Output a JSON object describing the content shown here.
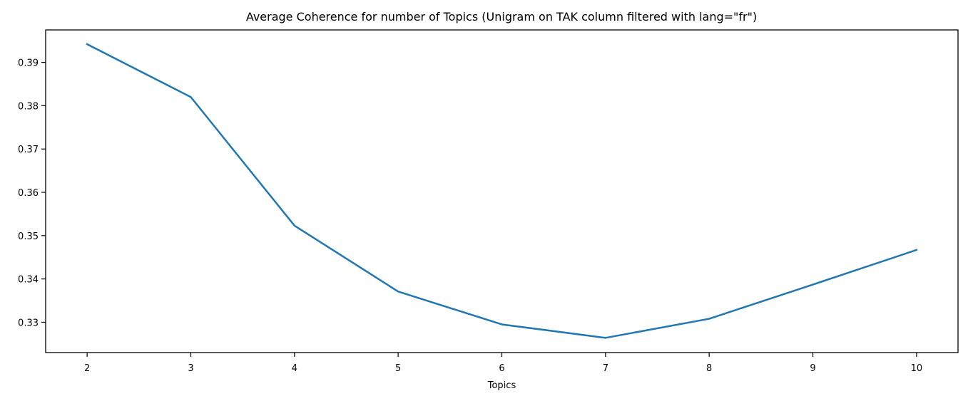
{
  "chart_data": {
    "type": "line",
    "title": "Average Coherence for number of Topics (Unigram on TAK column filtered with lang=\"fr\")",
    "xlabel": "Topics",
    "ylabel": "",
    "x": [
      2,
      3,
      4,
      5,
      6,
      7,
      8,
      9,
      10
    ],
    "series": [
      {
        "values": [
          0.3942,
          0.382,
          0.3523,
          0.3371,
          0.3295,
          0.3264,
          0.3308,
          0.3387,
          0.3467
        ],
        "color": "#1f77b4"
      }
    ],
    "xlim": [
      1.6,
      10.4
    ],
    "ylim": [
      0.323,
      0.3975
    ],
    "xticks": [
      "2",
      "3",
      "4",
      "5",
      "6",
      "7",
      "8",
      "9",
      "10"
    ],
    "yticks": [
      "0.33",
      "0.34",
      "0.35",
      "0.36",
      "0.37",
      "0.38",
      "0.39"
    ],
    "grid": false,
    "legend": "none"
  }
}
